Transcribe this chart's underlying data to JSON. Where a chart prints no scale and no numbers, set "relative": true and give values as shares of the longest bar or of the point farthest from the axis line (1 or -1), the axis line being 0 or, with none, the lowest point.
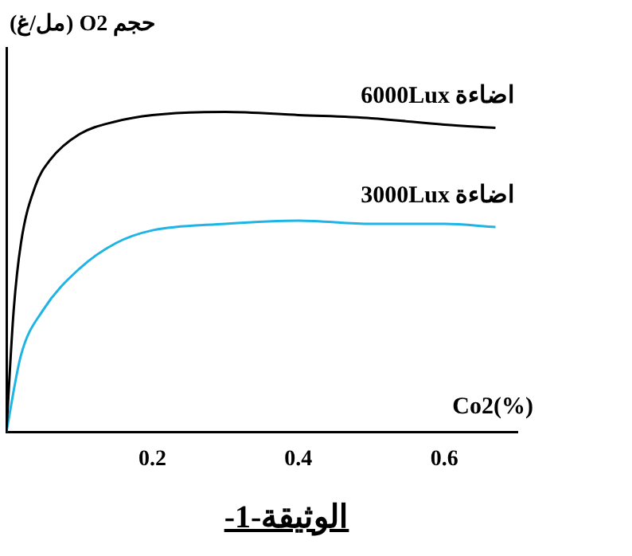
{
  "chart_data": {
    "type": "line",
    "title": "الوثيقة-1-",
    "ylabel": "حجم O2 (مل/غ)",
    "xlabel": "Co2(%)",
    "relative": true,
    "xlim": [
      0,
      0.7
    ],
    "xticks": [
      0.2,
      0.4,
      0.6
    ],
    "grid": false,
    "legend": false,
    "marker": "none",
    "line_style": "solid",
    "series": [
      {
        "name": "اضاءة 6000Lux",
        "color": "#000000",
        "x": [
          0,
          0.01,
          0.02,
          0.04,
          0.06,
          0.1,
          0.15,
          0.2,
          0.3,
          0.4,
          0.5,
          0.6,
          0.67
        ],
        "values": [
          0,
          0.38,
          0.59,
          0.77,
          0.85,
          0.93,
          0.97,
          0.99,
          1,
          0.99,
          0.98,
          0.96,
          0.95
        ]
      },
      {
        "name": "اضاءة 3000Lux",
        "color": "#1fb4e6",
        "x": [
          0,
          0.02,
          0.05,
          0.1,
          0.15,
          0.2,
          0.3,
          0.4,
          0.5,
          0.6,
          0.67
        ],
        "values": [
          0,
          0.24,
          0.38,
          0.51,
          0.59,
          0.63,
          0.65,
          0.66,
          0.65,
          0.65,
          0.64
        ]
      }
    ]
  }
}
